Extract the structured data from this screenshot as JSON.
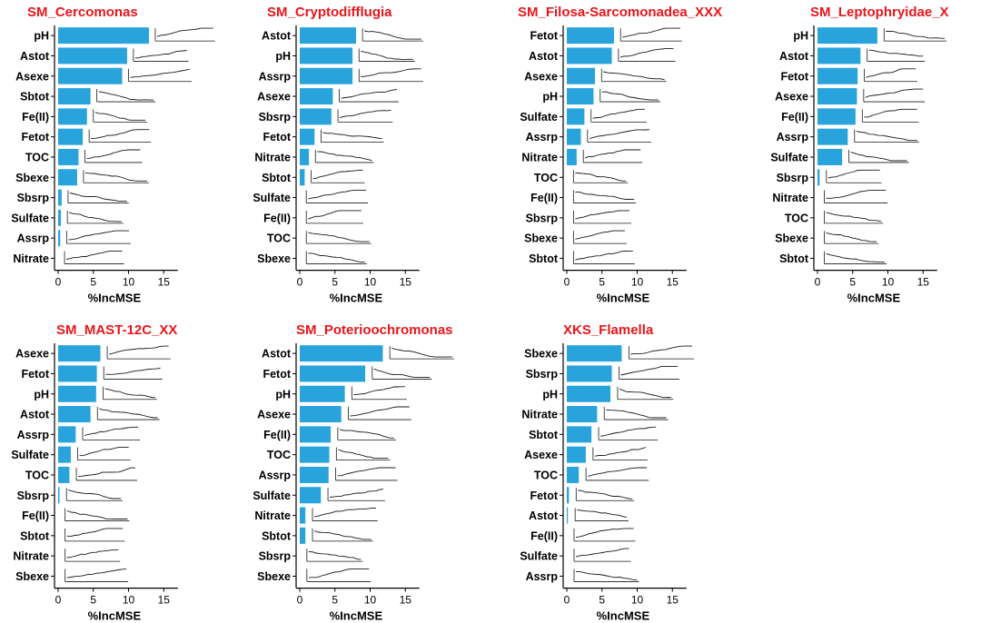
{
  "colors": {
    "bar": "#29a3dc",
    "title": "#e8161b",
    "axis": "#000000",
    "curve": "#1a1a1a"
  },
  "chart_data": [
    {
      "type": "bar",
      "orientation": "horizontal",
      "title": "SM_Cercomonas",
      "xlabel": "%IncMSE",
      "xlim": [
        0,
        17
      ],
      "xticks": [
        0,
        5,
        10,
        15
      ],
      "categories": [
        "pH",
        "Astot",
        "Asexe",
        "Sbtot",
        "Fe(II)",
        "Fetot",
        "TOC",
        "Sbexe",
        "Sbsrp",
        "Sulfate",
        "Assrp",
        "Nitrate"
      ],
      "values": [
        12.9,
        9.8,
        9.1,
        4.6,
        4.1,
        3.5,
        2.9,
        2.7,
        0.5,
        0.4,
        0.3,
        0.0
      ],
      "partial_dependence": "inline response curve shown to the right of each bar"
    },
    {
      "type": "bar",
      "orientation": "horizontal",
      "title": "SM_Cryptodifflugia",
      "xlabel": "%IncMSE",
      "xlim": [
        0,
        17
      ],
      "xticks": [
        0,
        5,
        10,
        15
      ],
      "categories": [
        "Astot",
        "pH",
        "Assrp",
        "Asexe",
        "Sbsrp",
        "Fetot",
        "Nitrate",
        "Sbtot",
        "Sulfate",
        "Fe(II)",
        "TOC",
        "Sbexe"
      ],
      "values": [
        8.0,
        7.5,
        7.5,
        4.7,
        4.5,
        2.1,
        1.3,
        0.7,
        0.0,
        0.0,
        0.0,
        0.0
      ],
      "partial_dependence": "inline response curve shown to the right of each bar"
    },
    {
      "type": "bar",
      "orientation": "horizontal",
      "title": "SM_Filosa-Sarcomonadea_XXX",
      "xlabel": "%IncMSE",
      "xlim": [
        0,
        17
      ],
      "xticks": [
        0,
        5,
        10,
        15
      ],
      "categories": [
        "Fetot",
        "Astot",
        "Asexe",
        "pH",
        "Sulfate",
        "Assrp",
        "Nitrate",
        "TOC",
        "Fe(II)",
        "Sbsrp",
        "Sbexe",
        "Sbtot"
      ],
      "values": [
        6.7,
        6.4,
        4.0,
        3.8,
        2.5,
        2.0,
        1.4,
        0.0,
        0.0,
        0.0,
        0.0,
        0.0
      ],
      "partial_dependence": "inline response curve shown to the right of each bar"
    },
    {
      "type": "bar",
      "orientation": "horizontal",
      "title": "SM_Leptophryidae_X",
      "xlabel": "%IncMSE",
      "xlim": [
        0,
        17
      ],
      "xticks": [
        0,
        5,
        10,
        15
      ],
      "categories": [
        "pH",
        "Astot",
        "Fetot",
        "Asexe",
        "Fe(II)",
        "Assrp",
        "Sulfate",
        "Sbsrp",
        "Nitrate",
        "TOC",
        "Sbexe",
        "Sbtot"
      ],
      "values": [
        8.5,
        6.1,
        5.7,
        5.6,
        5.4,
        4.3,
        3.5,
        0.3,
        0.0,
        0.0,
        0.0,
        0.0
      ],
      "partial_dependence": "inline response curve shown to the right of each bar"
    },
    {
      "type": "bar",
      "orientation": "horizontal",
      "title": "SM_MAST-12C_XX",
      "xlabel": "%IncMSE",
      "xlim": [
        0,
        17
      ],
      "xticks": [
        0,
        5,
        10,
        15
      ],
      "categories": [
        "Asexe",
        "Fetot",
        "pH",
        "Astot",
        "Assrp",
        "Sulfate",
        "TOC",
        "Sbsrp",
        "Fe(II)",
        "Sbtot",
        "Nitrate",
        "Sbexe"
      ],
      "values": [
        6.0,
        5.5,
        5.4,
        4.6,
        2.5,
        1.8,
        1.6,
        0.2,
        0.0,
        0.0,
        0.0,
        0.0
      ],
      "partial_dependence": "inline response curve shown to the right of each bar"
    },
    {
      "type": "bar",
      "orientation": "horizontal",
      "title": "SM_Poterioochromonas",
      "xlabel": "%IncMSE",
      "xlim": [
        0,
        17
      ],
      "xticks": [
        0,
        5,
        10,
        15
      ],
      "categories": [
        "Astot",
        "Fetot",
        "pH",
        "Asexe",
        "Fe(II)",
        "TOC",
        "Assrp",
        "Sulfate",
        "Nitrate",
        "Sbtot",
        "Sbsrp",
        "Sbexe"
      ],
      "values": [
        11.8,
        9.3,
        6.4,
        5.9,
        4.4,
        4.2,
        4.1,
        3.0,
        0.8,
        0.8,
        0.0,
        0.0
      ],
      "partial_dependence": "inline response curve shown to the right of each bar"
    },
    {
      "type": "bar",
      "orientation": "horizontal",
      "title": "XKS_Flamella",
      "xlabel": "%IncMSE",
      "xlim": [
        0,
        17
      ],
      "xticks": [
        0,
        5,
        10,
        15
      ],
      "categories": [
        "Sbexe",
        "Sbsrp",
        "pH",
        "Nitrate",
        "Sbtot",
        "Asexe",
        "TOC",
        "Fetot",
        "Astot",
        "Fe(II)",
        "Sulfate",
        "Assrp"
      ],
      "values": [
        7.8,
        6.4,
        6.2,
        4.3,
        3.5,
        2.7,
        1.7,
        0.3,
        0.1,
        0.0,
        0.0,
        0.0
      ],
      "partial_dependence": "inline response curve shown to the right of each bar"
    }
  ]
}
